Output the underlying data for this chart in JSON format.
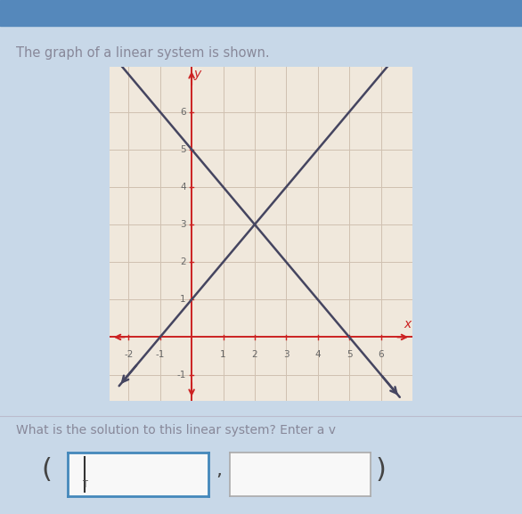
{
  "title": "The graph of a linear system is shown.",
  "subtitle": "What is the solution to this linear system? Enter a v",
  "line1": {
    "slope": -1,
    "intercept": 5,
    "color": "#454560"
  },
  "line2": {
    "slope": 1,
    "intercept": 1,
    "color": "#454560"
  },
  "intersection": [
    2,
    3
  ],
  "xlim": [
    -2.6,
    7.0
  ],
  "ylim": [
    -1.7,
    7.2
  ],
  "xtick_vals": [
    -2,
    -1,
    1,
    2,
    3,
    4,
    5,
    6
  ],
  "ytick_vals": [
    -1,
    1,
    2,
    3,
    4,
    5,
    6
  ],
  "axis_color": "#cc2222",
  "grid_color": "#cfc0b0",
  "plot_bg": "#f0e8dc",
  "page_bg": "#e8e0d4",
  "outer_bg": "#c8d8e8",
  "input_bg": "#f8f8f8",
  "input_border": "#4488bb",
  "text_color": "#888899",
  "label_color": "#666666"
}
